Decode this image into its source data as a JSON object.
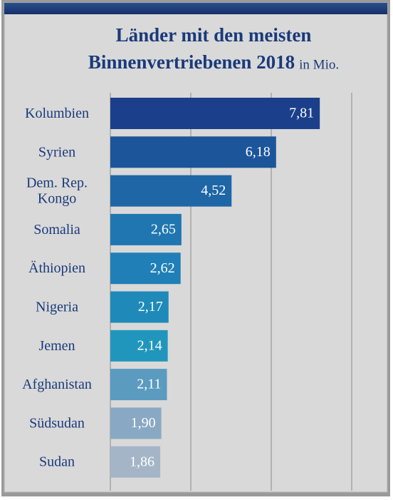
{
  "chart_data": {
    "type": "bar",
    "orientation": "horizontal",
    "title": "Länder mit den meisten\nBinnenvertriebenen 2018",
    "unit": "in Mio.",
    "categories": [
      "Kolumbien",
      "Syrien",
      "Dem. Rep.\nKongo",
      "Somalia",
      "Äthiopien",
      "Nigeria",
      "Jemen",
      "Afghanistan",
      "Südsudan",
      "Sudan"
    ],
    "values": [
      7.81,
      6.18,
      4.52,
      2.65,
      2.62,
      2.17,
      2.14,
      2.11,
      1.9,
      1.86
    ],
    "value_labels": [
      "7,81",
      "6,18",
      "4,52",
      "2,65",
      "2,62",
      "2,17",
      "2,14",
      "2,11",
      "1,90",
      "1,86"
    ],
    "colors": [
      "#1b3f8b",
      "#1c559a",
      "#1e66a6",
      "#1f76b1",
      "#207fb6",
      "#1f8ab9",
      "#2196bd",
      "#5a9bbf",
      "#89a8c3",
      "#a4b5c7"
    ],
    "xlim": [
      0,
      9
    ],
    "xticks": [
      0,
      3,
      6,
      9
    ],
    "grid": true
  }
}
